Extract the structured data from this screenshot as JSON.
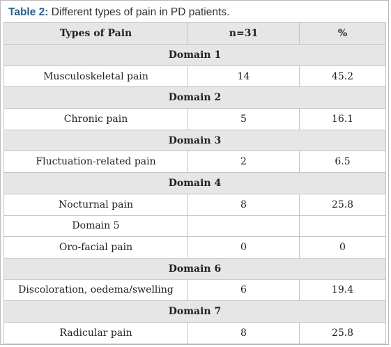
{
  "caption": {
    "label": "Table 2:",
    "text": " Different types of pain in PD patients."
  },
  "table": {
    "headers": [
      "Types of Pain",
      "n=31",
      "%"
    ],
    "rows": [
      {
        "kind": "domain",
        "label": "Domain 1"
      },
      {
        "kind": "data",
        "cells": [
          "Musculoskeletal pain",
          "14",
          "45.2"
        ]
      },
      {
        "kind": "domain",
        "label": "Domain 2"
      },
      {
        "kind": "data",
        "cells": [
          "Chronic pain",
          "5",
          "16.1"
        ]
      },
      {
        "kind": "domain",
        "label": "Domain 3"
      },
      {
        "kind": "data",
        "cells": [
          "Fluctuation-related pain",
          "2",
          "6.5"
        ]
      },
      {
        "kind": "domain",
        "label": "Domain 4"
      },
      {
        "kind": "data",
        "cells": [
          "Nocturnal pain",
          "8",
          "25.8"
        ]
      },
      {
        "kind": "data",
        "cells": [
          "Domain 5",
          "",
          ""
        ]
      },
      {
        "kind": "data",
        "cells": [
          "Oro-facial pain",
          "0",
          "0"
        ]
      },
      {
        "kind": "domain",
        "label": "Domain 6"
      },
      {
        "kind": "data",
        "cells": [
          "Discoloration, oedema/swelling",
          "6",
          "19.4"
        ]
      },
      {
        "kind": "domain",
        "label": "Domain 7"
      },
      {
        "kind": "data",
        "cells": [
          "Radicular pain",
          "8",
          "25.8"
        ]
      }
    ]
  }
}
